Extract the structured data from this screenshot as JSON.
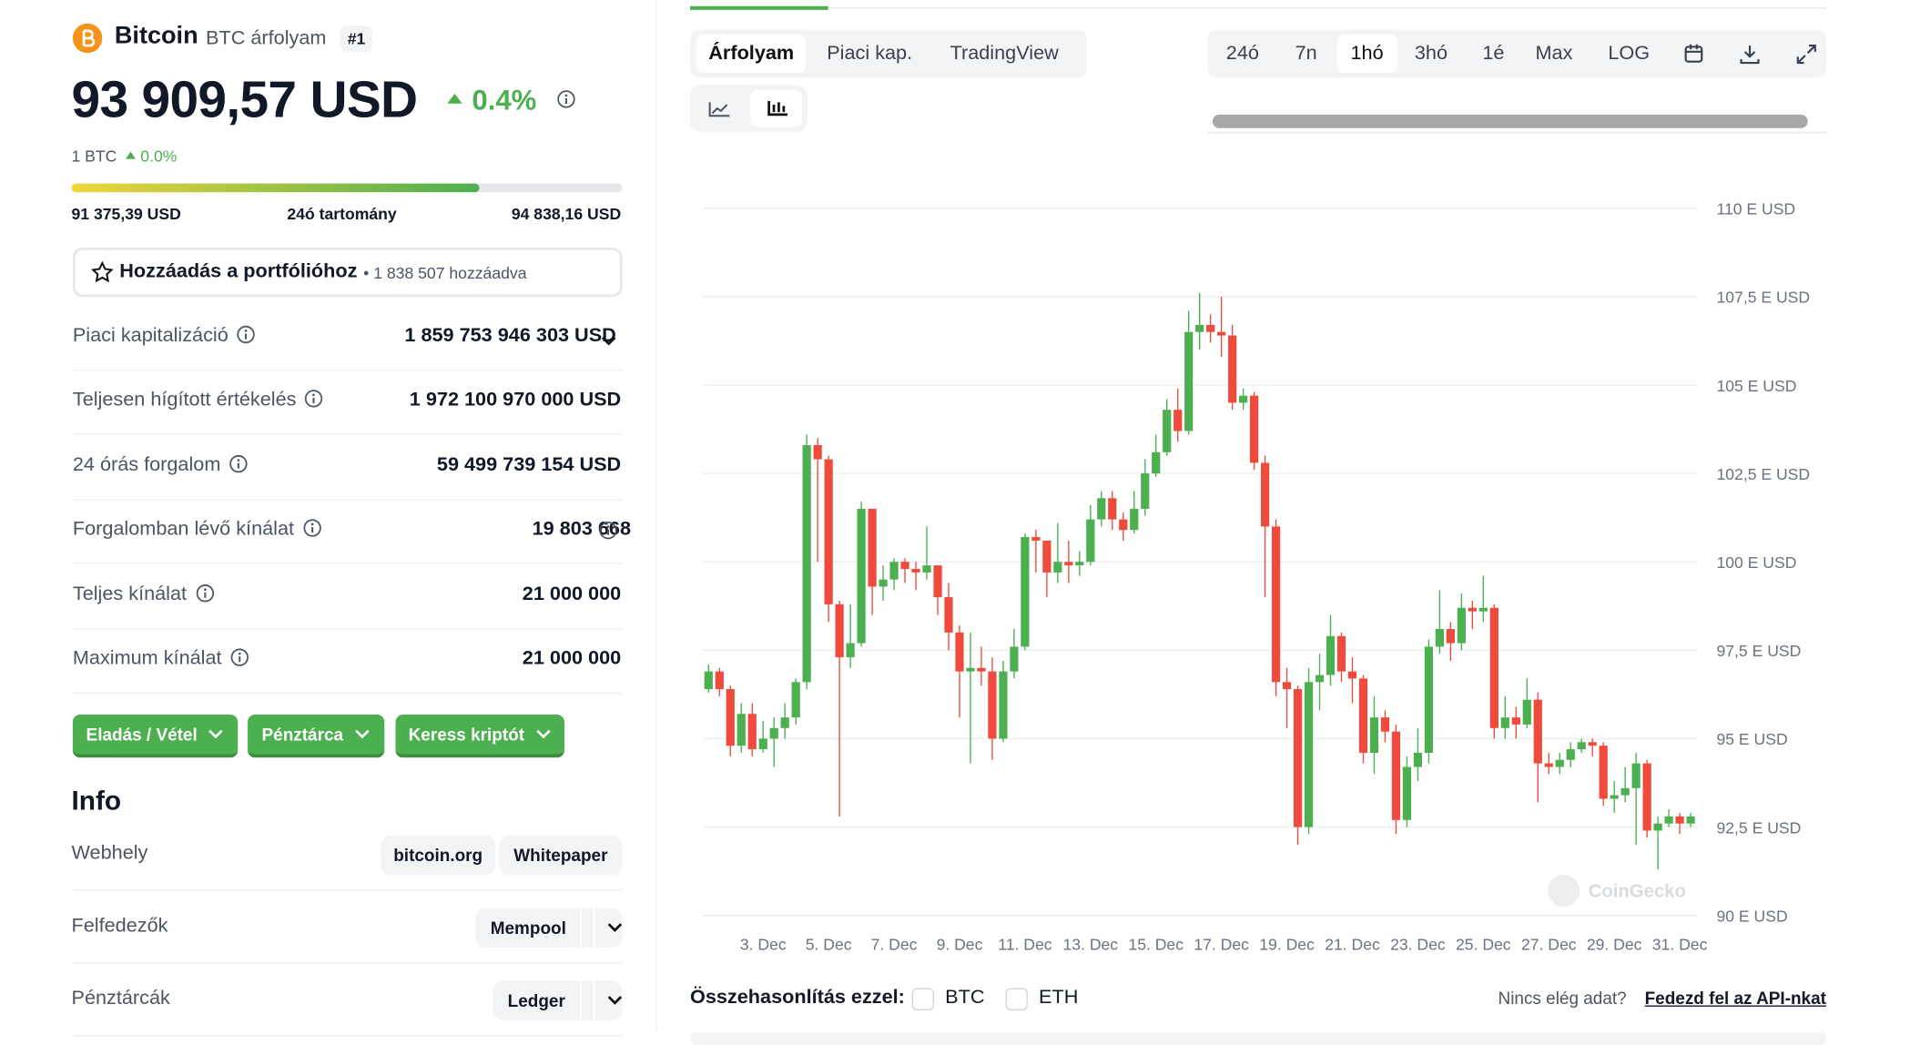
{
  "header": {
    "name": "Bitcoin",
    "symbol": "BTC árfolyam",
    "rank": "#1",
    "price": "93 909,57 USD",
    "change": "0.4%",
    "btc": "1 BTC",
    "btc_change": "0.0%"
  },
  "range": {
    "low": "91 375,39 USD",
    "label": "24ó tartomány",
    "high": "94 838,16 USD"
  },
  "portfolio": {
    "button": "Hozzáadás a portfólióhoz",
    "count": "• 1 838 507 hozzáadva"
  },
  "stats": [
    {
      "label": "Piaci kapitalizáció",
      "value": "1 859 753 946 303 USD"
    },
    {
      "label": "Teljesen hígított értékelés",
      "value": "1 972 100 970 000 USD"
    },
    {
      "label": "24 órás forgalom",
      "value": "59 499 739 154 USD"
    },
    {
      "label": "Forgalomban lévő kínálat",
      "value": "19 803 668"
    },
    {
      "label": "Teljes kínálat",
      "value": "21 000 000"
    },
    {
      "label": "Maximum kínálat",
      "value": "21 000 000"
    }
  ],
  "actions": [
    "Eladás / Vétel",
    "Pénztárca",
    "Keress kriptót"
  ],
  "info": {
    "title": "Info",
    "rows": [
      {
        "label": "Webhely",
        "items": [
          "bitcoin.org",
          "Whitepaper"
        ]
      },
      {
        "label": "Felfedezők",
        "items": [
          "Mempool"
        ]
      },
      {
        "label": "Pénztárcák",
        "items": [
          "Ledger"
        ]
      }
    ]
  },
  "tabs": [
    "Árfolyam",
    "Piaci kap.",
    "TradingView"
  ],
  "ranges": [
    "24ó",
    "7n",
    "1hó",
    "3hó",
    "1é",
    "Max",
    "LOG"
  ],
  "compare": {
    "label": "Összehasonlítás ezzel:",
    "options": [
      "BTC",
      "ETH"
    ],
    "note": "Nincs elég adat?",
    "link": "Fedezd fel az API-nkat"
  },
  "watermark": "CoinGecko",
  "chart_data": {
    "type": "candlestick",
    "up_color": "#4caf50",
    "down_color": "#ef4a3c",
    "grid": true,
    "categories": [
      null,
      null,
      null,
      null,
      null,
      "3. Dec",
      null,
      null,
      null,
      null,
      null,
      "5. Dec",
      null,
      null,
      null,
      null,
      null,
      "7. Dec",
      null,
      null,
      null,
      null,
      null,
      "9. Dec",
      null,
      null,
      null,
      null,
      null,
      "11. Dec",
      null,
      null,
      null,
      null,
      null,
      "13. Dec",
      null,
      null,
      null,
      null,
      null,
      "15. Dec",
      null,
      null,
      null,
      null,
      null,
      "17. Dec",
      null,
      null,
      null,
      null,
      null,
      "19. Dec",
      null,
      null,
      null,
      null,
      null,
      "21. Dec",
      null,
      null,
      null,
      null,
      null,
      "23. Dec",
      null,
      null,
      null,
      null,
      null,
      "25. Dec",
      null,
      null,
      null,
      null,
      null,
      "27. Dec",
      null,
      null,
      null,
      null,
      null,
      "29. Dec",
      null,
      null,
      null,
      null,
      null,
      "31. Dec",
      null
    ],
    "open": [
      96.4,
      96.9,
      96.4,
      94.8,
      95.7,
      94.7,
      95.0,
      95.3,
      95.6,
      96.6,
      103.3,
      102.9,
      98.8,
      97.3,
      97.7,
      101.5,
      99.3,
      99.5,
      100.0,
      99.8,
      99.7,
      99.9,
      99.0,
      98.0,
      96.9,
      97.0,
      96.9,
      95.0,
      96.9,
      97.6,
      100.7,
      100.6,
      99.7,
      100.0,
      99.9,
      100.0,
      101.2,
      101.8,
      101.2,
      100.9,
      101.5,
      102.5,
      103.1,
      104.3,
      103.7,
      106.5,
      106.7,
      106.5,
      106.4,
      104.5,
      104.7,
      102.8,
      101.0,
      96.6,
      96.4,
      92.5,
      96.6,
      96.8,
      97.9,
      96.9,
      96.7,
      94.6,
      95.6,
      95.2,
      92.7,
      94.2,
      94.6,
      97.6,
      98.1,
      97.7,
      98.7,
      98.6,
      98.7,
      95.3,
      95.6,
      95.4,
      96.1,
      94.3,
      94.2,
      94.4,
      94.7,
      94.9,
      94.8,
      93.3,
      93.4,
      93.6,
      94.3,
      92.4,
      92.6,
      92.8,
      92.6
    ],
    "high": [
      97.1,
      97.0,
      96.5,
      96.0,
      96.0,
      95.5,
      95.6,
      96.0,
      96.7,
      103.6,
      103.5,
      103.0,
      98.9,
      98.8,
      101.7,
      101.5,
      99.9,
      100.1,
      100.1,
      100.0,
      101.0,
      99.9,
      99.4,
      98.2,
      98.0,
      97.6,
      97.3,
      97.2,
      98.1,
      100.8,
      100.9,
      100.6,
      101.1,
      100.6,
      100.3,
      101.6,
      102.0,
      102.0,
      101.4,
      102.0,
      102.9,
      103.6,
      104.6,
      104.9,
      107.1,
      107.6,
      107.0,
      107.5,
      106.7,
      104.9,
      104.8,
      103.0,
      101.2,
      97.0,
      96.5,
      97.0,
      97.4,
      98.5,
      98.0,
      97.3,
      96.8,
      96.2,
      95.8,
      95.4,
      94.5,
      95.3,
      97.8,
      99.2,
      98.3,
      99.1,
      98.9,
      99.6,
      98.8,
      96.2,
      95.9,
      96.7,
      96.3,
      94.6,
      94.6,
      94.9,
      95.0,
      95.0,
      94.9,
      93.8,
      94.2,
      94.6,
      94.4,
      92.8,
      93.0,
      92.9,
      92.9
    ],
    "low": [
      96.3,
      96.2,
      94.5,
      94.6,
      94.5,
      94.6,
      94.2,
      95.0,
      95.4,
      96.4,
      100.0,
      98.3,
      92.8,
      97.0,
      97.6,
      98.5,
      98.9,
      99.2,
      99.4,
      99.2,
      99.5,
      98.5,
      97.5,
      95.6,
      94.3,
      96.5,
      94.4,
      94.9,
      96.7,
      97.5,
      99.7,
      99.0,
      99.4,
      99.4,
      99.6,
      99.9,
      101.0,
      100.9,
      100.6,
      100.8,
      101.3,
      102.4,
      103.0,
      103.4,
      103.6,
      106.0,
      106.2,
      105.8,
      104.3,
      104.3,
      102.6,
      99.0,
      96.2,
      95.3,
      92.0,
      92.3,
      95.8,
      96.5,
      96.6,
      96.0,
      94.3,
      94.0,
      94.9,
      92.3,
      92.5,
      93.8,
      94.3,
      97.4,
      97.2,
      97.5,
      98.1,
      98.3,
      95.0,
      95.0,
      95.0,
      95.3,
      93.2,
      94.0,
      94.0,
      94.2,
      94.6,
      94.5,
      93.1,
      92.9,
      93.2,
      92.0,
      92.2,
      91.3,
      92.5,
      92.3,
      92.5
    ],
    "close": [
      96.9,
      96.4,
      94.8,
      95.7,
      94.7,
      95.0,
      95.3,
      95.6,
      96.6,
      103.3,
      102.9,
      98.8,
      97.3,
      97.7,
      101.5,
      99.3,
      99.5,
      100.0,
      99.8,
      99.7,
      99.9,
      99.0,
      98.0,
      96.9,
      97.0,
      96.9,
      95.0,
      96.9,
      97.6,
      100.7,
      100.6,
      99.7,
      100.0,
      99.9,
      100.0,
      101.2,
      101.8,
      101.2,
      100.9,
      101.5,
      102.5,
      103.1,
      104.3,
      103.7,
      106.5,
      106.7,
      106.5,
      106.4,
      104.5,
      104.7,
      102.8,
      101.0,
      96.6,
      96.4,
      92.5,
      96.6,
      96.8,
      97.9,
      96.9,
      96.7,
      94.6,
      95.6,
      95.2,
      92.7,
      94.2,
      94.6,
      97.6,
      98.1,
      97.7,
      98.7,
      98.6,
      98.7,
      95.3,
      95.6,
      95.4,
      96.1,
      94.3,
      94.2,
      94.4,
      94.7,
      94.9,
      94.8,
      93.3,
      93.4,
      93.6,
      94.3,
      92.4,
      92.6,
      92.8,
      92.6,
      92.8
    ],
    "ylim": [
      90,
      110
    ],
    "yticks": [
      {
        "value": 90,
        "label": "90 E USD"
      },
      {
        "value": 92.5,
        "label": "92,5 E USD"
      },
      {
        "value": 95,
        "label": "95 E USD"
      },
      {
        "value": 97.5,
        "label": "97,5 E USD"
      },
      {
        "value": 100,
        "label": "100 E USD"
      },
      {
        "value": 102.5,
        "label": "102,5 E USD"
      },
      {
        "value": 105,
        "label": "105 E USD"
      },
      {
        "value": 107.5,
        "label": "107,5 E USD"
      },
      {
        "value": 110,
        "label": "110 E USD"
      }
    ]
  }
}
